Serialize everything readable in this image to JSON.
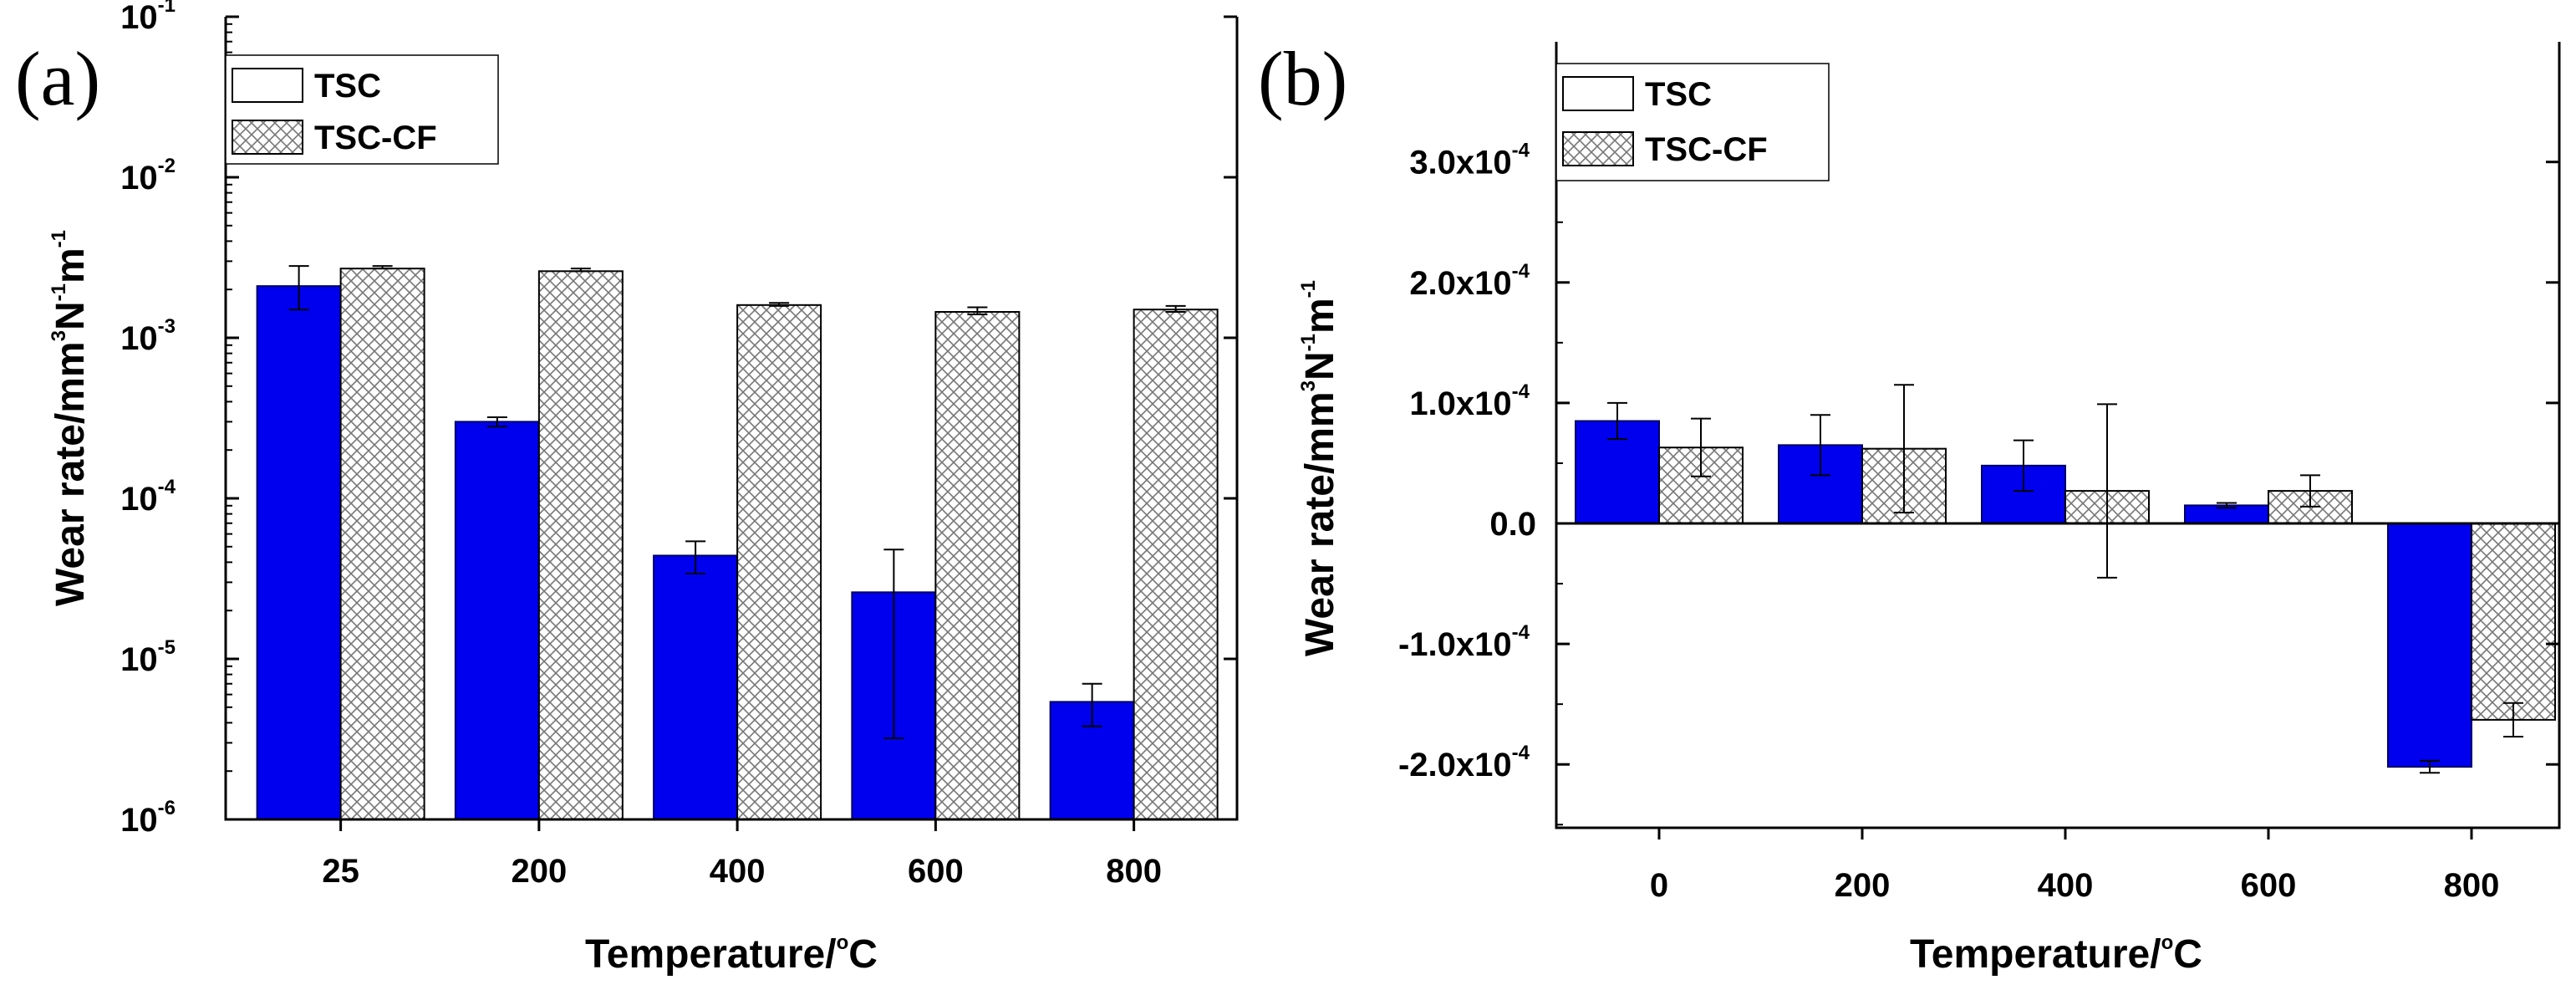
{
  "colors": {
    "tsc": "#0000ee",
    "tsc_cf_fill": "#ffffff",
    "tsc_cf_hatch": "#777777",
    "axis": "#000000"
  },
  "chart_data": [
    {
      "panel_label": "(a)",
      "type": "bar",
      "yscale": "log",
      "categories": [
        "25",
        "200",
        "400",
        "600",
        "800"
      ],
      "series": [
        {
          "name": "TSC",
          "values": [
            0.0021,
            0.0003,
            4.4e-05,
            2.6e-05,
            5.4e-06
          ],
          "error_low": [
            0.0015,
            0.00028,
            3.4e-05,
            3.2e-06,
            3.8e-06
          ],
          "error_high": [
            0.0028,
            0.00032,
            5.4e-05,
            4.8e-05,
            7e-06
          ]
        },
        {
          "name": "TSC-CF",
          "values": [
            0.0027,
            0.0026,
            0.0016,
            0.00145,
            0.0015
          ],
          "error_low": [
            0.0027,
            0.0026,
            0.00158,
            0.0014,
            0.00145
          ],
          "error_high": [
            0.0028,
            0.0027,
            0.00165,
            0.00155,
            0.00158
          ]
        }
      ],
      "ylim": [
        1e-06,
        0.1
      ],
      "y_ticks": [
        {
          "base": "10",
          "exp": "-6"
        },
        {
          "base": "10",
          "exp": "-5"
        },
        {
          "base": "10",
          "exp": "-4"
        },
        {
          "base": "10",
          "exp": "-3"
        },
        {
          "base": "10",
          "exp": "-2"
        },
        {
          "base": "10",
          "exp": "-1"
        }
      ],
      "xlabel": "Temperature/°C",
      "ylabel": "Wear rate/mm³N⁻¹m⁻¹",
      "legend": "top-left"
    },
    {
      "panel_label": "(b)",
      "type": "bar",
      "yscale": "linear",
      "categories": [
        "0",
        "200",
        "400",
        "600",
        "800"
      ],
      "series": [
        {
          "name": "TSC",
          "values": [
            8.5e-05,
            6.5e-05,
            4.8e-05,
            1.5e-05,
            -0.000202
          ],
          "error": [
            1.5e-05,
            2.5e-05,
            2.1e-05,
            2e-06,
            5e-06
          ]
        },
        {
          "name": "TSC-CF",
          "values": [
            6.3e-05,
            6.2e-05,
            2.7e-05,
            2.7e-05,
            -0.000163
          ],
          "error": [
            2.4e-05,
            5.3e-05,
            7.2e-05,
            1.3e-05,
            1.4e-05
          ]
        }
      ],
      "ylim": [
        -0.00025,
        0.00037
      ],
      "y_ticks": [
        {
          "value": -0.0002,
          "mant": "-2.0x10",
          "exp": "-4"
        },
        {
          "value": -0.0001,
          "mant": "-1.0x10",
          "exp": "-4"
        },
        {
          "value": 0,
          "mant": "0.0",
          "exp": ""
        },
        {
          "value": 0.0001,
          "mant": "1.0x10",
          "exp": "-4"
        },
        {
          "value": 0.0002,
          "mant": "2.0x10",
          "exp": "-4"
        },
        {
          "value": 0.0003,
          "mant": "3.0x10",
          "exp": "-4"
        }
      ],
      "xlabel": "Temperature/°C",
      "ylabel": "Wear rate/mm³N⁻¹m⁻¹",
      "legend": "top-left"
    }
  ]
}
